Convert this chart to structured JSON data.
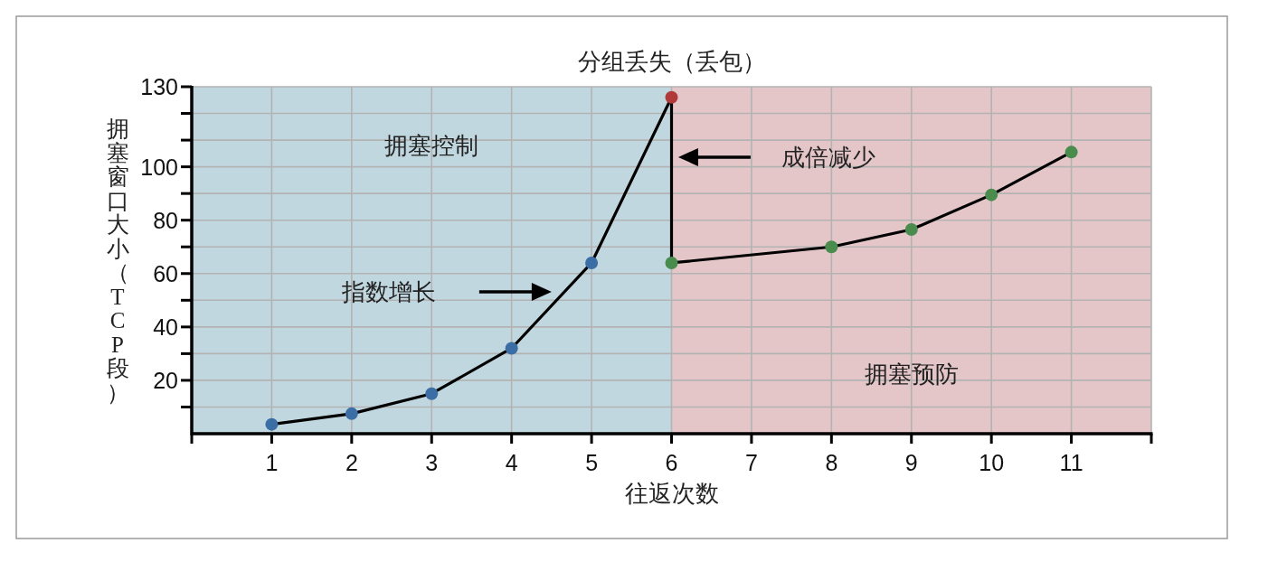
{
  "chart_data": {
    "type": "line",
    "title": "分组丢失（丢包）",
    "xlabel": "往返次数",
    "ylabel": "拥塞窗口大小（TCP段）",
    "series": [
      {
        "color": "#000000",
        "x": [
          1,
          2,
          3,
          4,
          5,
          6,
          6,
          8,
          9,
          10,
          11
        ],
        "values": [
          3.5,
          7.5,
          15,
          32,
          64,
          126,
          64,
          70,
          76.5,
          89.5,
          105.5
        ],
        "colors": [
          "#3b6ea5",
          "#3b6ea5",
          "#3b6ea5",
          "#3b6ea5",
          "#3b6ea5",
          "#b03a3a",
          "#4a8c4e",
          "#4a8c4e",
          "#4a8c4e",
          "#4a8c4e",
          "#4a8c4e"
        ]
      }
    ],
    "xlim": [
      0,
      12
    ],
    "xticks": [
      {
        "value": 0,
        "label": null
      },
      1,
      2,
      3,
      4,
      5,
      6,
      7,
      8,
      9,
      10,
      11,
      {
        "value": 12,
        "label": null
      }
    ],
    "ylim": [
      0,
      130
    ],
    "yticks": [
      {
        "value": 10,
        "label": null
      },
      20,
      {
        "value": 30,
        "label": null
      },
      40,
      {
        "value": 50,
        "label": null
      },
      60,
      {
        "value": 70,
        "label": null
      },
      80,
      {
        "value": 90,
        "label": null
      },
      100,
      {
        "value": 110,
        "label": null
      },
      {
        "value": 120,
        "label": null
      },
      130
    ],
    "grid": true,
    "marker": "circle",
    "line_style": "solid",
    "bands": [
      {
        "axis": "x",
        "from": 0,
        "to": 6,
        "color": "#c0d7e0",
        "label": "拥塞控制"
      },
      {
        "axis": "x",
        "from": 6,
        "to": 12,
        "color": "#e5c6c8",
        "label": "拥塞预防"
      }
    ],
    "annotations": [
      "指数增长",
      "成倍减少"
    ]
  }
}
